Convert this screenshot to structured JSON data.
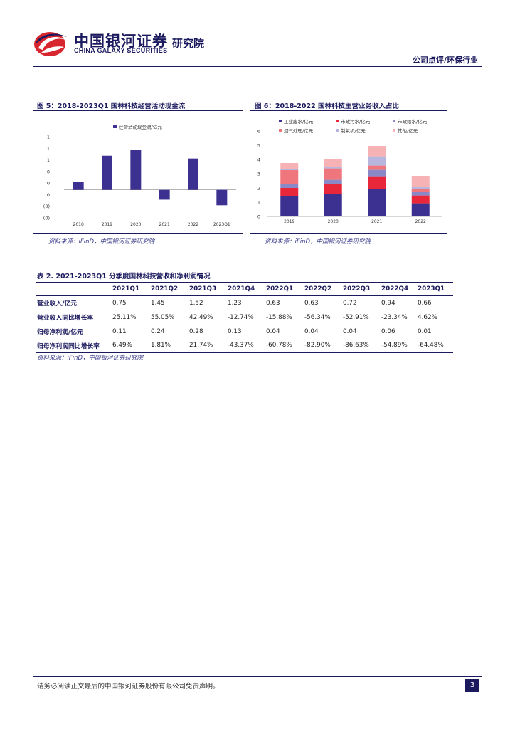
{
  "header": {
    "brand_cn": "中国银河证券",
    "brand_en": "CHINA GALAXY SECURITIES",
    "brand_inst": "研究院",
    "doc_type": "公司点评/环保行业"
  },
  "figure5": {
    "title": "图 5：2018-2023Q1 国林科技经营活动现金流",
    "source": "资料来源：iFinD，中国银河证券研究院"
  },
  "figure6": {
    "title": "图 6：2018-2022 国林科技主营业务收入占比",
    "source": "资料来源：iFinD，中国银河证券研究院"
  },
  "chart_data": [
    {
      "type": "bar",
      "series": [
        {
          "name": "经营活动现金流/亿元",
          "values": [
            0.28,
            1.22,
            1.42,
            -0.35,
            1.12,
            -0.55
          ]
        }
      ],
      "categories": [
        "2018",
        "2019",
        "2020",
        "2021",
        "2022",
        "2023Q1"
      ],
      "ytick_labels": [
        "1",
        "1",
        "1",
        "0",
        "0",
        "0",
        "(0)",
        "(0)"
      ],
      "ylim": [
        -1.0,
        1.9
      ],
      "color": "#3c3191"
    },
    {
      "type": "bar",
      "stacked": true,
      "categories": [
        "2019",
        "2020",
        "2021",
        "2022"
      ],
      "series": [
        {
          "name": "工业废水/亿元",
          "values": [
            1.45,
            1.55,
            1.9,
            0.92
          ],
          "color": "#3c3191"
        },
        {
          "name": "市政污水/亿元",
          "values": [
            0.55,
            0.72,
            0.92,
            0.55
          ],
          "color": "#e8283a"
        },
        {
          "name": "市政给水/亿元",
          "values": [
            0.3,
            0.3,
            0.45,
            0.25
          ],
          "color": "#8a88c6"
        },
        {
          "name": "烟气处理/亿元",
          "values": [
            0.95,
            0.8,
            0.3,
            0.2
          ],
          "color": "#f0767e"
        },
        {
          "name": "制氧机/亿元",
          "values": [
            0.1,
            0.1,
            0.65,
            0.15
          ],
          "color": "#b7b6df"
        },
        {
          "name": "其他/亿元",
          "values": [
            0.4,
            0.55,
            0.73,
            0.78
          ],
          "color": "#f7b2b6"
        }
      ],
      "ylim": [
        0,
        6
      ],
      "yticks": [
        0,
        1,
        2,
        3,
        4,
        5,
        6
      ]
    }
  ],
  "table": {
    "title": "表 2. 2021-2023Q1 分季度国林科技营收和净利润情况",
    "columns": [
      "",
      "2021Q1",
      "2021Q2",
      "2021Q3",
      "2021Q4",
      "2022Q1",
      "2022Q2",
      "2022Q3",
      "2022Q4",
      "2023Q1"
    ],
    "rows": [
      [
        "营业收入/亿元",
        "0.75",
        "1.45",
        "1.52",
        "1.23",
        "0.63",
        "0.63",
        "0.72",
        "0.94",
        "0.66"
      ],
      [
        "营业收入同比增长率",
        "25.11%",
        "55.05%",
        "42.49%",
        "-12.74%",
        "-15.88%",
        "-56.34%",
        "-52.91%",
        "-23.34%",
        "4.62%"
      ],
      [
        "归母净利润/亿元",
        "0.11",
        "0.24",
        "0.28",
        "0.13",
        "0.04",
        "0.04",
        "0.04",
        "0.06",
        "0.01"
      ],
      [
        "归母净利润同比增长率",
        "6.49%",
        "1.81%",
        "21.74%",
        "-43.37%",
        "-60.78%",
        "-82.90%",
        "-86.63%",
        "-54.89%",
        "-64.48%"
      ]
    ],
    "source": "资料来源：iFinD，中国银河证券研究院"
  },
  "footer": {
    "disclaimer": "请务必阅读正文最后的中国银河证券股份有限公司免责声明。",
    "page": "3"
  }
}
